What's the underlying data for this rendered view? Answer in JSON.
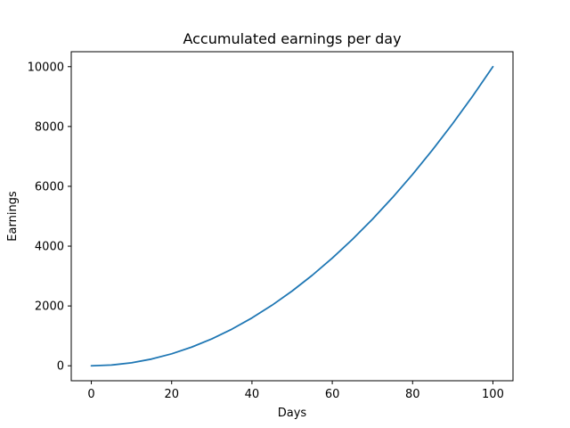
{
  "chart_data": {
    "type": "line",
    "title": "Accumulated earnings per day",
    "xlabel": "Days",
    "ylabel": "Earnings",
    "xlim": [
      -5,
      105
    ],
    "ylim": [
      -500,
      10500
    ],
    "xticks": [
      0,
      20,
      40,
      60,
      80,
      100
    ],
    "yticks": [
      0,
      2000,
      4000,
      6000,
      8000,
      10000
    ],
    "grid": false,
    "series": [
      {
        "color": "#1f77b4",
        "x": [
          0,
          5,
          10,
          15,
          20,
          25,
          30,
          35,
          40,
          45,
          50,
          55,
          60,
          65,
          70,
          75,
          80,
          85,
          90,
          95,
          100
        ],
        "y": [
          0,
          25,
          100,
          225,
          400,
          625,
          900,
          1225,
          1600,
          2025,
          2500,
          3025,
          3600,
          4225,
          4900,
          5625,
          6400,
          7225,
          8100,
          9025,
          10000
        ]
      }
    ]
  }
}
